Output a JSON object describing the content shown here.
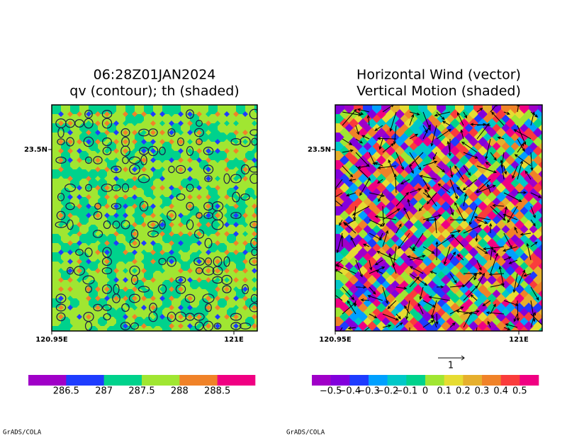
{
  "panels": [
    {
      "title": [
        "06:28Z01JAN2024",
        "qv (contour); th (shaded)"
      ],
      "ytick_labels": [
        "23.5N"
      ],
      "xtick_labels": [
        "120.95E",
        "121E"
      ],
      "colorbar": {
        "colors": [
          "#a000c8",
          "#1e3cff",
          "#00d28c",
          "#a0e632",
          "#f08228",
          "#f00082"
        ],
        "levels": [
          286.5,
          287,
          287.5,
          288,
          288.5
        ]
      }
    },
    {
      "title": [
        "Horizontal Wind (vector)",
        "Vertical Motion (shaded)"
      ],
      "ytick_labels": [
        "23.5N"
      ],
      "xtick_labels": [
        "120.95E",
        "121E"
      ],
      "vector_reference": 1,
      "colorbar": {
        "colors": [
          "#a000c8",
          "#8200dc",
          "#1e3cff",
          "#00a0ff",
          "#00c8c8",
          "#00d28c",
          "#a0e632",
          "#e6dc32",
          "#e6af2d",
          "#f08228",
          "#fa3c3c",
          "#f00082"
        ],
        "levels": [
          {
            "value": -0.5,
            "label": "−0.5"
          },
          {
            "value": -0.4,
            "label": "−0.4"
          },
          {
            "value": -0.3,
            "label": "−0.3"
          },
          {
            "value": -0.2,
            "label": "−0.2"
          },
          {
            "value": -0.1,
            "label": "−0.1"
          },
          0,
          0.1,
          0.2,
          0.3,
          0.4,
          0.5
        ]
      }
    }
  ],
  "footer": [
    "GrADS/COLA",
    "GrADS/COLA"
  ]
}
